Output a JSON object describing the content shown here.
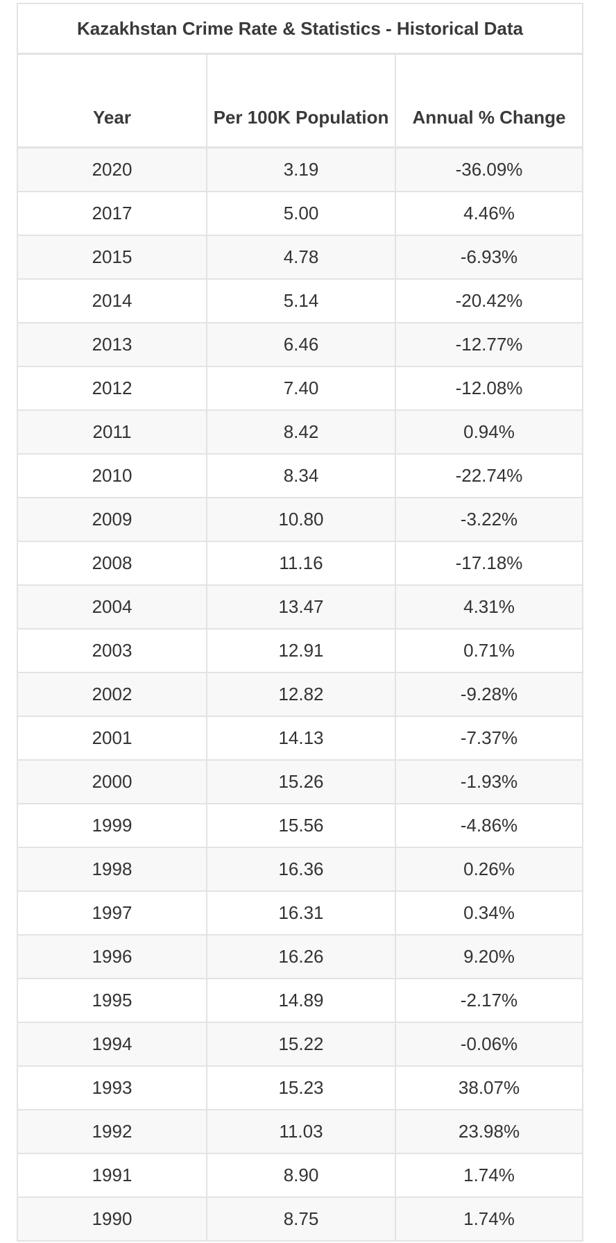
{
  "table": {
    "title": "Kazakhstan Crime Rate & Statistics - Historical Data",
    "headers": {
      "year": "Year",
      "per100k": "Per 100K Population",
      "change": "Annual % Change"
    },
    "rows": [
      {
        "year": "2020",
        "per100k": "3.19",
        "change": "-36.09%"
      },
      {
        "year": "2017",
        "per100k": "5.00",
        "change": "4.46%"
      },
      {
        "year": "2015",
        "per100k": "4.78",
        "change": "-6.93%"
      },
      {
        "year": "2014",
        "per100k": "5.14",
        "change": "-20.42%"
      },
      {
        "year": "2013",
        "per100k": "6.46",
        "change": "-12.77%"
      },
      {
        "year": "2012",
        "per100k": "7.40",
        "change": "-12.08%"
      },
      {
        "year": "2011",
        "per100k": "8.42",
        "change": "0.94%"
      },
      {
        "year": "2010",
        "per100k": "8.34",
        "change": "-22.74%"
      },
      {
        "year": "2009",
        "per100k": "10.80",
        "change": "-3.22%"
      },
      {
        "year": "2008",
        "per100k": "11.16",
        "change": "-17.18%"
      },
      {
        "year": "2004",
        "per100k": "13.47",
        "change": "4.31%"
      },
      {
        "year": "2003",
        "per100k": "12.91",
        "change": "0.71%"
      },
      {
        "year": "2002",
        "per100k": "12.82",
        "change": "-9.28%"
      },
      {
        "year": "2001",
        "per100k": "14.13",
        "change": "-7.37%"
      },
      {
        "year": "2000",
        "per100k": "15.26",
        "change": "-1.93%"
      },
      {
        "year": "1999",
        "per100k": "15.56",
        "change": "-4.86%"
      },
      {
        "year": "1998",
        "per100k": "16.36",
        "change": "0.26%"
      },
      {
        "year": "1997",
        "per100k": "16.31",
        "change": "0.34%"
      },
      {
        "year": "1996",
        "per100k": "16.26",
        "change": "9.20%"
      },
      {
        "year": "1995",
        "per100k": "14.89",
        "change": "-2.17%"
      },
      {
        "year": "1994",
        "per100k": "15.22",
        "change": "-0.06%"
      },
      {
        "year": "1993",
        "per100k": "15.23",
        "change": "38.07%"
      },
      {
        "year": "1992",
        "per100k": "11.03",
        "change": "23.98%"
      },
      {
        "year": "1991",
        "per100k": "8.90",
        "change": "1.74%"
      },
      {
        "year": "1990",
        "per100k": "8.75",
        "change": "1.74%"
      }
    ]
  }
}
